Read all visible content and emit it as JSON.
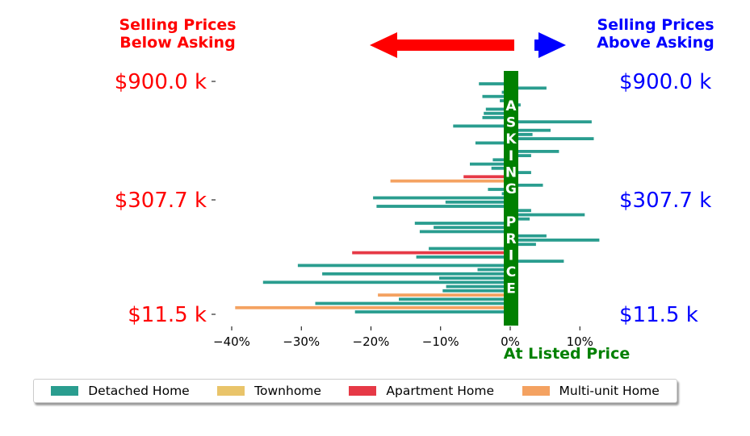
{
  "header": {
    "left_title": "Selling Prices\nBelow Asking",
    "right_title": "Selling Prices\nAbove Asking",
    "left_color": "#ff0000",
    "right_color": "#0000ff"
  },
  "chart_data": {
    "type": "bar",
    "orientation": "horizontal",
    "xlabel": "At Listed Price",
    "xlim": [
      -0.42,
      0.145
    ],
    "x_ticks": [
      -0.4,
      -0.3,
      -0.2,
      -0.1,
      0.0,
      0.1
    ],
    "x_tick_labels": [
      "−40%",
      "−30%",
      "−20%",
      "−10%",
      "0%",
      "10%"
    ],
    "y_tick_labels_left": [
      "$900.0 k",
      "$307.7 k",
      "$11.5 k"
    ],
    "y_tick_labels_right": [
      "$900.0 k",
      "$307.7 k",
      "$11.5 k"
    ],
    "center_band_text": "ASKING PRICE",
    "center_band_color": "#008000",
    "grid": false,
    "legend_placement": "bottom",
    "categories": [
      "Detached Home",
      "Townhome",
      "Apartment Home",
      "Multi-unit Home"
    ],
    "category_colors": {
      "Detached Home": "#2a9d8f",
      "Townhome": "#e9c46a",
      "Apartment Home": "#e63946",
      "Multi-unit Home": "#f4a261"
    },
    "values": [
      {
        "v": -0.045,
        "cat": "Detached Home"
      },
      {
        "v": 0.052,
        "cat": "Detached Home"
      },
      {
        "v": -0.012,
        "cat": "Detached Home"
      },
      {
        "v": -0.04,
        "cat": "Detached Home"
      },
      {
        "v": -0.015,
        "cat": "Detached Home"
      },
      {
        "v": 0.015,
        "cat": "Detached Home"
      },
      {
        "v": -0.035,
        "cat": "Detached Home"
      },
      {
        "v": -0.038,
        "cat": "Detached Home"
      },
      {
        "v": -0.04,
        "cat": "Detached Home"
      },
      {
        "v": 0.117,
        "cat": "Detached Home"
      },
      {
        "v": -0.082,
        "cat": "Detached Home"
      },
      {
        "v": 0.058,
        "cat": "Detached Home"
      },
      {
        "v": 0.032,
        "cat": "Detached Home"
      },
      {
        "v": 0.12,
        "cat": "Detached Home"
      },
      {
        "v": -0.05,
        "cat": "Detached Home"
      },
      {
        "v": -0.008,
        "cat": "Detached Home"
      },
      {
        "v": 0.07,
        "cat": "Detached Home"
      },
      {
        "v": 0.03,
        "cat": "Detached Home"
      },
      {
        "v": -0.025,
        "cat": "Detached Home"
      },
      {
        "v": -0.058,
        "cat": "Detached Home"
      },
      {
        "v": -0.027,
        "cat": "Detached Home"
      },
      {
        "v": 0.03,
        "cat": "Detached Home"
      },
      {
        "v": -0.067,
        "cat": "Apartment Home"
      },
      {
        "v": -0.172,
        "cat": "Multi-unit Home"
      },
      {
        "v": 0.047,
        "cat": "Detached Home"
      },
      {
        "v": -0.032,
        "cat": "Detached Home"
      },
      {
        "v": -0.012,
        "cat": "Detached Home"
      },
      {
        "v": -0.197,
        "cat": "Detached Home"
      },
      {
        "v": -0.093,
        "cat": "Detached Home"
      },
      {
        "v": -0.192,
        "cat": "Detached Home"
      },
      {
        "v": 0.03,
        "cat": "Detached Home"
      },
      {
        "v": 0.107,
        "cat": "Detached Home"
      },
      {
        "v": 0.028,
        "cat": "Detached Home"
      },
      {
        "v": -0.137,
        "cat": "Detached Home"
      },
      {
        "v": -0.11,
        "cat": "Detached Home"
      },
      {
        "v": -0.13,
        "cat": "Detached Home"
      },
      {
        "v": 0.052,
        "cat": "Detached Home"
      },
      {
        "v": 0.128,
        "cat": "Detached Home"
      },
      {
        "v": 0.037,
        "cat": "Detached Home"
      },
      {
        "v": -0.117,
        "cat": "Detached Home"
      },
      {
        "v": -0.227,
        "cat": "Apartment Home"
      },
      {
        "v": -0.135,
        "cat": "Detached Home"
      },
      {
        "v": 0.077,
        "cat": "Detached Home"
      },
      {
        "v": -0.305,
        "cat": "Detached Home"
      },
      {
        "v": -0.047,
        "cat": "Detached Home"
      },
      {
        "v": -0.27,
        "cat": "Detached Home"
      },
      {
        "v": -0.102,
        "cat": "Detached Home"
      },
      {
        "v": -0.355,
        "cat": "Detached Home"
      },
      {
        "v": -0.092,
        "cat": "Detached Home"
      },
      {
        "v": -0.097,
        "cat": "Detached Home"
      },
      {
        "v": -0.19,
        "cat": "Multi-unit Home"
      },
      {
        "v": -0.16,
        "cat": "Detached Home"
      },
      {
        "v": -0.28,
        "cat": "Detached Home"
      },
      {
        "v": -0.395,
        "cat": "Multi-unit Home"
      },
      {
        "v": -0.223,
        "cat": "Detached Home"
      }
    ]
  },
  "legend": {
    "items": [
      {
        "label": "Detached Home",
        "color": "#2a9d8f"
      },
      {
        "label": "Townhome",
        "color": "#e9c46a"
      },
      {
        "label": "Apartment Home",
        "color": "#e63946"
      },
      {
        "label": "Multi-unit Home",
        "color": "#f4a261"
      }
    ]
  }
}
